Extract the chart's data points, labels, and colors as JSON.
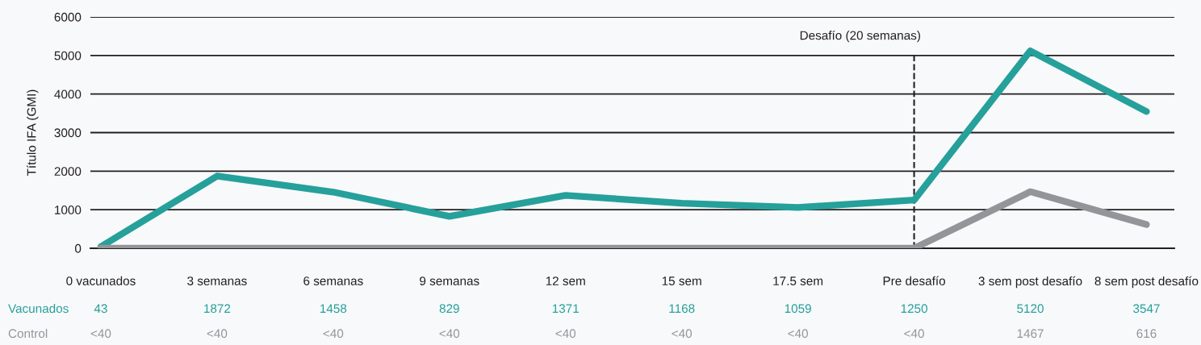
{
  "chart_data": {
    "type": "line",
    "categories": [
      "0 vacunados",
      "3 semanas",
      "6 semanas",
      "9 semanas",
      "12 sem",
      "15 sem",
      "17.5 sem",
      "Pre desafío",
      "3 sem post desafío",
      "8 sem post desafío"
    ],
    "series": [
      {
        "name": "Vacunados",
        "color": "#26a09a",
        "values": [
          43,
          1872,
          1458,
          829,
          1371,
          1168,
          1059,
          1250,
          5120,
          3547
        ],
        "value_labels": [
          "43",
          "1872",
          "1458",
          "829",
          "1371",
          "1168",
          "1059",
          "1250",
          "5120",
          "3547"
        ]
      },
      {
        "name": "Control",
        "color": "#939598",
        "values": [
          0,
          0,
          0,
          0,
          0,
          0,
          0,
          0,
          1467,
          616
        ],
        "value_labels": [
          "<40",
          "<40",
          "<40",
          "<40",
          "<40",
          "<40",
          "<40",
          "<40",
          "1467",
          "616"
        ]
      }
    ],
    "ylabel": "Título IFA (GMI)",
    "ylim": [
      0,
      6000
    ],
    "yticks": [
      0,
      1000,
      2000,
      3000,
      4000,
      5000,
      6000
    ],
    "grid": "y",
    "line_style": "solid",
    "ref_lines": [
      {
        "axis": "x",
        "value": "Pre desafío",
        "label": "Desafío (20 semanas)",
        "color": "#231f20",
        "line_style": "dashed"
      }
    ]
  }
}
